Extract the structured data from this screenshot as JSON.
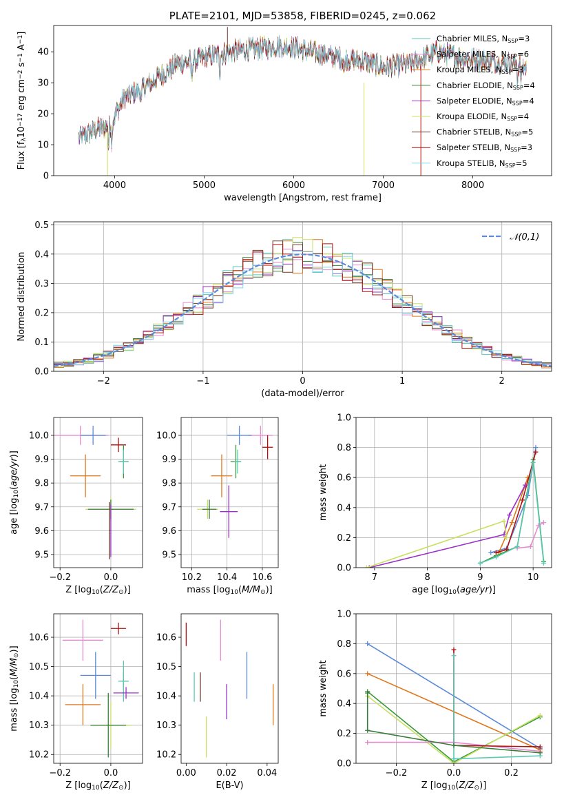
{
  "chart_data": [
    {
      "id": "spectrum",
      "type": "line",
      "title": "PLATE=2101, MJD=53858, FIBERID=0245, z=0.062",
      "xlabel": "wavelength [Angstrom, rest frame]",
      "ylabel": "Flux [f$_\\lambda$10$^{-17}$ erg cm$^{-2}$ s$^{-1}$ A$^{-1}$]",
      "xlim": [
        3320,
        8880
      ],
      "ylim": [
        0,
        48.5
      ],
      "xticks": [
        4000,
        5000,
        6000,
        7000,
        8000
      ],
      "yticks": [
        0,
        10,
        20,
        30,
        40
      ],
      "grid": false,
      "legend_position": "top-right",
      "continuum": [
        [
          3600,
          12
        ],
        [
          3800,
          15
        ],
        [
          3950,
          16
        ],
        [
          4100,
          25
        ],
        [
          4300,
          28
        ],
        [
          4500,
          32
        ],
        [
          4700,
          36
        ],
        [
          5000,
          38
        ],
        [
          5300,
          40
        ],
        [
          5600,
          41
        ],
        [
          5900,
          42
        ],
        [
          6200,
          40
        ],
        [
          6500,
          38
        ],
        [
          6800,
          37
        ],
        [
          7000,
          35
        ],
        [
          7300,
          36
        ],
        [
          7600,
          40
        ],
        [
          7900,
          38
        ],
        [
          8200,
          37
        ],
        [
          8500,
          36
        ],
        [
          8600,
          35
        ]
      ],
      "series": [
        {
          "name": "Chabrier MILES, N$_{SSP}$=3",
          "color": "#5ac8b4"
        },
        {
          "name": "Salpeter MILES, N$_{SSP}$=6",
          "color": "#e68ad0"
        },
        {
          "name": "Kroupa MILES, N$_{SSP}$=3",
          "color": "#e0761a"
        },
        {
          "name": "Chabrier ELODIE, N$_{SSP}$=4",
          "color": "#3a7d3a"
        },
        {
          "name": "Salpeter ELODIE, N$_{SSP}$=4",
          "color": "#9b30c8"
        },
        {
          "name": "Kroupa ELODIE, N$_{SSP}$=4",
          "color": "#c8e060"
        },
        {
          "name": "Chabrier STELIB, N$_{SSP}$=5",
          "color": "#6b3a2a"
        },
        {
          "name": "Salpeter STELIB, N$_{SSP}$=3",
          "color": "#b01010"
        },
        {
          "name": "Kroupa STELIB, N$_{SSP}$=5",
          "color": "#80d8f0"
        }
      ]
    },
    {
      "id": "residuals",
      "type": "line",
      "xlabel": "(data-model)/error",
      "ylabel": "Normed distribution",
      "xlim": [
        -2.5,
        2.5
      ],
      "ylim": [
        0,
        0.51
      ],
      "xticks": [
        -2,
        -1,
        0,
        1,
        2
      ],
      "yticks": [
        0.0,
        0.1,
        0.2,
        0.3,
        0.4,
        0.5
      ],
      "grid": true,
      "legend": "$\\mathcal{N}(0,1)$",
      "legend_position": "top-right",
      "gaussian": {
        "mean": 0,
        "sigma": 1,
        "color": "#5b8ad8"
      }
    },
    {
      "id": "age-vs-Z",
      "type": "scatter",
      "xlabel": "Z [log$_{10}$($Z/Z_\\odot$)]",
      "ylabel": "age  [log$_{10}$($age/yr$)]",
      "xlim": [
        -0.225,
        0.125
      ],
      "ylim": [
        9.445,
        10.075
      ],
      "xticks": [
        -0.2,
        0.0
      ],
      "yticks": [
        9.5,
        9.6,
        9.7,
        9.8,
        9.9,
        10.0
      ],
      "grid": true,
      "points": [
        {
          "x": -0.12,
          "y": 10.0,
          "xerr": 0.11,
          "yerr": 0.04,
          "color": "#e68ad0"
        },
        {
          "x": -0.07,
          "y": 10.0,
          "xerr": 0.05,
          "yerr": 0.04,
          "color": "#5b8ad8"
        },
        {
          "x": -0.1,
          "y": 9.83,
          "xerr": 0.06,
          "yerr": 0.09,
          "color": "#e0761a"
        },
        {
          "x": 0.03,
          "y": 9.96,
          "xerr": 0.03,
          "yerr": 0.03,
          "color": "#b01010"
        },
        {
          "x": 0.05,
          "y": 9.89,
          "xerr": 0.02,
          "yerr": 0.07,
          "color": "#3a9a3a"
        },
        {
          "x": 0.05,
          "y": 9.89,
          "xerr": 0.02,
          "yerr": 0.05,
          "color": "#5ac8b4"
        },
        {
          "x": 0.0,
          "y": 9.69,
          "xerr": 0.1,
          "yerr": 0.05,
          "color": "#c8e060"
        },
        {
          "x": 0.0,
          "y": 9.69,
          "xerr": 0.09,
          "yerr": 0.04,
          "color": "#3a7d3a"
        },
        {
          "x": -0.005,
          "y": 9.6,
          "xerr": 0.002,
          "yerr": 0.12,
          "color": "#6b3a2a"
        },
        {
          "x": 0.0,
          "y": 9.6,
          "xerr": 0.002,
          "yerr": 0.11,
          "color": "#9b30c8"
        }
      ]
    },
    {
      "id": "age-vs-mass",
      "type": "scatter",
      "xlabel": "mass [log$_{10}$($M/M_\\odot$)]",
      "ylabel": "",
      "xlim": [
        10.14,
        10.69
      ],
      "ylim": [
        9.445,
        10.075
      ],
      "xticks": [
        10.2,
        10.4,
        10.6
      ],
      "yticks": [
        9.5,
        9.6,
        9.7,
        9.8,
        9.9,
        10.0
      ],
      "grid": true,
      "points": [
        {
          "x": 10.59,
          "y": 10.0,
          "xerr": 0.07,
          "yerr": 0.04,
          "color": "#e68ad0"
        },
        {
          "x": 10.47,
          "y": 10.0,
          "xerr": 0.07,
          "yerr": 0.04,
          "color": "#5b8ad8"
        },
        {
          "x": 10.63,
          "y": 9.95,
          "xerr": 0.03,
          "yerr": 0.05,
          "color": "#b01010"
        },
        {
          "x": 10.45,
          "y": 9.89,
          "xerr": 0.03,
          "yerr": 0.07,
          "color": "#3a9a3a"
        },
        {
          "x": 10.46,
          "y": 9.89,
          "xerr": 0.02,
          "yerr": 0.05,
          "color": "#5ac8b4"
        },
        {
          "x": 10.37,
          "y": 9.83,
          "xerr": 0.06,
          "yerr": 0.09,
          "color": "#e0761a"
        },
        {
          "x": 10.29,
          "y": 9.69,
          "xerr": 0.06,
          "yerr": 0.04,
          "color": "#c8e060"
        },
        {
          "x": 10.3,
          "y": 9.69,
          "xerr": 0.04,
          "yerr": 0.04,
          "color": "#3a7d3a"
        },
        {
          "x": 10.41,
          "y": 9.68,
          "xerr": 0.05,
          "yerr": 0.11,
          "color": "#9b30c8"
        }
      ]
    },
    {
      "id": "weight-vs-age",
      "type": "line",
      "xlabel": "age  [log$_{10}$($age/yr$)]",
      "ylabel": "mass weight",
      "xlim": [
        6.65,
        10.35
      ],
      "ylim": [
        0.0,
        1.0
      ],
      "xticks": [
        7,
        8,
        9,
        10
      ],
      "yticks": [
        0.0,
        0.2,
        0.4,
        0.6,
        0.8,
        1.0
      ],
      "grid": true,
      "series": [
        {
          "color": "#5b8ad8",
          "points": [
            [
              9.2,
              0.1
            ],
            [
              9.5,
              0.13
            ],
            [
              9.9,
              0.48
            ],
            [
              10.05,
              0.8
            ]
          ]
        },
        {
          "color": "#e0761a",
          "points": [
            [
              9.35,
              0.1
            ],
            [
              9.6,
              0.3
            ],
            [
              9.9,
              0.6
            ]
          ]
        },
        {
          "color": "#3a9a3a",
          "points": [
            [
              9.0,
              0.03
            ],
            [
              9.3,
              0.08
            ],
            [
              9.7,
              0.14
            ],
            [
              10.0,
              0.72
            ],
            [
              10.2,
              0.04
            ]
          ]
        },
        {
          "color": "#b01010",
          "points": [
            [
              9.3,
              0.1
            ],
            [
              9.5,
              0.12
            ],
            [
              9.8,
              0.45
            ],
            [
              10.05,
              0.77
            ]
          ]
        },
        {
          "color": "#9b30c8",
          "points": [
            [
              6.9,
              0.0
            ],
            [
              9.45,
              0.22
            ],
            [
              9.55,
              0.35
            ],
            [
              9.85,
              0.55
            ]
          ]
        },
        {
          "color": "#c8e060",
          "points": [
            [
              6.85,
              0.0
            ],
            [
              9.45,
              0.31
            ],
            [
              9.5,
              0.2
            ]
          ]
        },
        {
          "color": "#e68ad0",
          "points": [
            [
              9.7,
              0.13
            ],
            [
              9.95,
              0.14
            ],
            [
              10.1,
              0.28
            ],
            [
              10.2,
              0.3
            ]
          ]
        },
        {
          "color": "#5ac8b4",
          "points": [
            [
              9.0,
              0.03
            ],
            [
              9.3,
              0.07
            ],
            [
              9.7,
              0.14
            ],
            [
              10.0,
              0.7
            ],
            [
              10.2,
              0.03
            ]
          ]
        }
      ]
    },
    {
      "id": "mass-vs-Z",
      "type": "scatter",
      "xlabel": "Z [log$_{10}$($Z/Z_\\odot$)]",
      "ylabel": "mass [log$_{10}$($M/M_\\odot$)]",
      "xlim": [
        -0.225,
        0.125
      ],
      "ylim": [
        10.17,
        10.68
      ],
      "xticks": [
        -0.2,
        0.0
      ],
      "yticks": [
        10.2,
        10.3,
        10.4,
        10.5,
        10.6
      ],
      "grid": true,
      "points": [
        {
          "x": -0.11,
          "y": 10.59,
          "xerr": 0.08,
          "yerr": 0.07,
          "color": "#e68ad0"
        },
        {
          "x": 0.03,
          "y": 10.63,
          "xerr": 0.03,
          "yerr": 0.02,
          "color": "#b01010"
        },
        {
          "x": -0.06,
          "y": 10.47,
          "xerr": 0.06,
          "yerr": 0.08,
          "color": "#5b8ad8"
        },
        {
          "x": 0.05,
          "y": 10.45,
          "xerr": 0.02,
          "yerr": 0.03,
          "color": "#3a9a3a"
        },
        {
          "x": 0.05,
          "y": 10.45,
          "xerr": 0.02,
          "yerr": 0.07,
          "color": "#5ac8b4"
        },
        {
          "x": 0.06,
          "y": 10.41,
          "xerr": 0.05,
          "yerr": 0.02,
          "color": "#9b30c8"
        },
        {
          "x": -0.11,
          "y": 10.37,
          "xerr": 0.07,
          "yerr": 0.07,
          "color": "#e0761a"
        },
        {
          "x": 0.0,
          "y": 10.3,
          "xerr": 0.08,
          "yerr": 0.08,
          "color": "#c8e060"
        },
        {
          "x": -0.01,
          "y": 10.3,
          "xerr": 0.07,
          "yerr": 0.11,
          "color": "#3a7d3a"
        }
      ]
    },
    {
      "id": "mass-vs-ebv",
      "type": "scatter",
      "xlabel": "E(B-V)",
      "ylabel": "",
      "xlim": [
        -0.0025,
        0.0455
      ],
      "ylim": [
        10.17,
        10.68
      ],
      "xticks": [
        0.0,
        0.02,
        0.04
      ],
      "yticks": [
        10.2,
        10.3,
        10.4,
        10.5,
        10.6
      ],
      "grid": false,
      "points": [
        {
          "x": 0.0,
          "y": 10.61,
          "xerr": 0,
          "yerr": 0.04,
          "color": "#b01010"
        },
        {
          "x": 0.004,
          "y": 10.43,
          "xerr": 0,
          "yerr": 0.05,
          "color": "#5ac8b4"
        },
        {
          "x": 0.007,
          "y": 10.43,
          "xerr": 0,
          "yerr": 0.05,
          "color": "#6b3a2a"
        },
        {
          "x": 0.01,
          "y": 10.26,
          "xerr": 0,
          "yerr": 0.07,
          "color": "#c8e060"
        },
        {
          "x": 0.017,
          "y": 10.59,
          "xerr": 0,
          "yerr": 0.07,
          "color": "#e68ad0"
        },
        {
          "x": 0.02,
          "y": 10.38,
          "xerr": 0,
          "yerr": 0.06,
          "color": "#9b30c8"
        },
        {
          "x": 0.03,
          "y": 10.47,
          "xerr": 0,
          "yerr": 0.08,
          "color": "#5b8ad8"
        },
        {
          "x": 0.043,
          "y": 10.37,
          "xerr": 0,
          "yerr": 0.07,
          "color": "#e0761a"
        }
      ]
    },
    {
      "id": "weight-vs-Z",
      "type": "line",
      "xlabel": "Z [log$_{10}$($Z/Z_\\odot$)]",
      "ylabel": "mass weight",
      "xlim": [
        -0.34,
        0.34
      ],
      "ylim": [
        0.0,
        1.0
      ],
      "xticks": [
        -0.2,
        0.0,
        0.2
      ],
      "yticks": [
        0.0,
        0.2,
        0.4,
        0.6,
        0.8,
        1.0
      ],
      "grid": true,
      "series": [
        {
          "color": "#5b8ad8",
          "points": [
            [
              -0.3,
              0.8
            ],
            [
              0.3,
              0.1
            ]
          ]
        },
        {
          "color": "#e0761a",
          "points": [
            [
              -0.3,
              0.6
            ],
            [
              0.3,
              0.09
            ]
          ]
        },
        {
          "color": "#3a9a3a",
          "points": [
            [
              -0.3,
              0.48
            ],
            [
              0.0,
              0.01
            ],
            [
              0.3,
              0.31
            ]
          ]
        },
        {
          "color": "#c8e060",
          "points": [
            [
              -0.3,
              0.45
            ],
            [
              0.0,
              0.0
            ],
            [
              0.3,
              0.32
            ]
          ]
        },
        {
          "color": "#e68ad0",
          "points": [
            [
              -0.3,
              0.14
            ],
            [
              0.0,
              0.14
            ],
            [
              0.3,
              0.08
            ]
          ]
        },
        {
          "color": "#b01010",
          "points": [
            [
              0.0,
              0.76
            ],
            [
              0.0,
              0.12
            ],
            [
              0.3,
              0.11
            ]
          ]
        },
        {
          "color": "#5ac8b4",
          "points": [
            [
              0.0,
              0.72
            ],
            [
              0.0,
              0.03
            ],
            [
              0.3,
              0.05
            ]
          ]
        },
        {
          "color": "#3a7d3a",
          "points": [
            [
              -0.3,
              0.47
            ],
            [
              -0.3,
              0.22
            ],
            [
              0.0,
              0.12
            ],
            [
              0.3,
              0.07
            ]
          ]
        }
      ]
    }
  ]
}
